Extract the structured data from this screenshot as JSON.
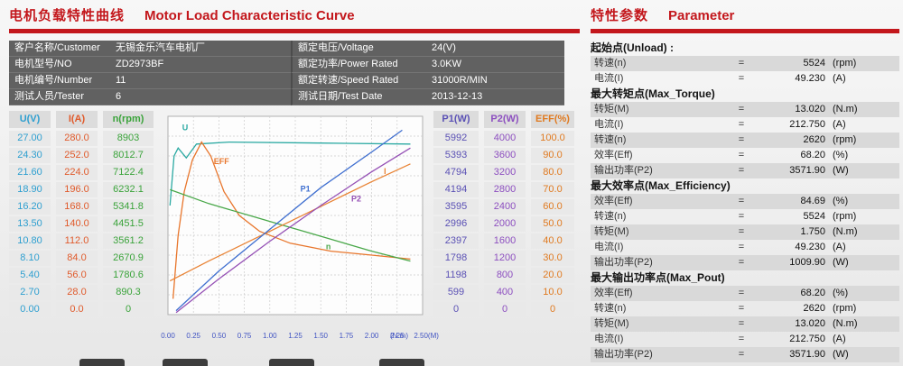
{
  "page": {
    "left_title_zh": "电机负载特性曲线",
    "left_title_en": "Motor Load Characteristic Curve",
    "right_title_zh": "特性参数",
    "right_title_en": "Parameter",
    "accent_color": "#c3171c"
  },
  "info": {
    "left_rows": [
      {
        "label": "客户名称/Customer",
        "value": "无锡金乐汽车电机厂"
      },
      {
        "label": "电机型号/NO",
        "value": "ZD2973BF"
      },
      {
        "label": "电机编号/Number",
        "value": "11"
      },
      {
        "label": "测试人员/Tester",
        "value": "6"
      }
    ],
    "right_rows": [
      {
        "label": "额定电压/Voltage",
        "value": "24(V)"
      },
      {
        "label": "额定功率/Power Rated",
        "value": "3.0KW"
      },
      {
        "label": "额定转速/Speed Rated",
        "value": "31000R/MIN"
      },
      {
        "label": "测试日期/Test Date",
        "value": "2013-12-13"
      }
    ]
  },
  "chart_data": {
    "type": "line",
    "title": "Motor Load Characteristic Curve",
    "x_axis": {
      "unit_label": "(N.m)",
      "range": [
        0,
        2.5
      ],
      "grid": true,
      "ticks": [
        "0.00",
        "0.25",
        "0.50",
        "0.75",
        "1.00",
        "1.25",
        "1.50",
        "1.75",
        "2.00",
        "2.25",
        "2.50(M)"
      ]
    },
    "axis_columns": [
      {
        "id": "U",
        "header": "U(V)",
        "color": "#2e9fd0",
        "ticks": [
          "27.00",
          "24.30",
          "21.60",
          "18.90",
          "16.20",
          "13.50",
          "10.80",
          "8.10",
          "5.40",
          "2.70",
          "0.00"
        ]
      },
      {
        "id": "I",
        "header": "I(A)",
        "color": "#e05a2b",
        "ticks": [
          "280.0",
          "252.0",
          "224.0",
          "196.0",
          "168.0",
          "140.0",
          "112.0",
          "84.0",
          "56.0",
          "28.0",
          "0.0"
        ]
      },
      {
        "id": "n",
        "header": "n(rpm)",
        "color": "#3aa33a",
        "ticks": [
          "8903",
          "8012.7",
          "7122.4",
          "6232.1",
          "5341.8",
          "4451.5",
          "3561.2",
          "2670.9",
          "1780.6",
          "890.3",
          "0"
        ]
      },
      {
        "id": "P1",
        "header": "P1(W)",
        "color": "#5b51b5",
        "ticks": [
          "5992",
          "5393",
          "4794",
          "4194",
          "3595",
          "2996",
          "2397",
          "1798",
          "1198",
          "599",
          "0"
        ]
      },
      {
        "id": "P2",
        "header": "P2(W)",
        "color": "#8d4fc0",
        "ticks": [
          "4000",
          "3600",
          "3200",
          "2800",
          "2400",
          "2000",
          "1600",
          "1200",
          "800",
          "400",
          "0"
        ]
      },
      {
        "id": "EFF",
        "header": "EFF(%)",
        "color": "#e07a20",
        "ticks": [
          "100.0",
          "90.0",
          "80.0",
          "70.0",
          "60.0",
          "50.0",
          "40.0",
          "30.0",
          "20.0",
          "10.0",
          "0"
        ]
      }
    ],
    "series": [
      {
        "name": "U",
        "color": "#2aa9a2",
        "points": [
          [
            0.02,
            0.55
          ],
          [
            0.06,
            0.8
          ],
          [
            0.1,
            0.84
          ],
          [
            0.18,
            0.79
          ],
          [
            0.28,
            0.86
          ],
          [
            0.6,
            0.87
          ],
          [
            1.5,
            0.865
          ],
          [
            2.38,
            0.86
          ]
        ],
        "label_at": [
          0.14,
          0.93
        ]
      },
      {
        "name": "EFF",
        "color": "#e8762c",
        "points": [
          [
            0.05,
            0.08
          ],
          [
            0.1,
            0.4
          ],
          [
            0.16,
            0.62
          ],
          [
            0.24,
            0.78
          ],
          [
            0.33,
            0.87
          ],
          [
            0.42,
            0.8
          ],
          [
            0.55,
            0.62
          ],
          [
            0.7,
            0.5
          ],
          [
            0.9,
            0.42
          ],
          [
            1.2,
            0.36
          ],
          [
            1.6,
            0.32
          ],
          [
            2.0,
            0.3
          ],
          [
            2.38,
            0.28
          ]
        ],
        "label_at": [
          0.45,
          0.76
        ]
      },
      {
        "name": "n",
        "color": "#4aa84a",
        "points": [
          [
            0.02,
            0.63
          ],
          [
            0.4,
            0.56
          ],
          [
            0.8,
            0.5
          ],
          [
            1.2,
            0.44
          ],
          [
            1.6,
            0.38
          ],
          [
            2.0,
            0.32
          ],
          [
            2.38,
            0.27
          ]
        ],
        "label_at": [
          1.55,
          0.33
        ]
      },
      {
        "name": "I",
        "color": "#e98436",
        "points": [
          [
            0.02,
            0.17
          ],
          [
            0.4,
            0.27
          ],
          [
            0.8,
            0.37
          ],
          [
            1.2,
            0.47
          ],
          [
            1.6,
            0.57
          ],
          [
            2.0,
            0.67
          ],
          [
            2.38,
            0.76
          ]
        ],
        "label_at": [
          2.12,
          0.71
        ]
      },
      {
        "name": "P1",
        "color": "#3f6fd0",
        "points": [
          [
            0.08,
            0.02
          ],
          [
            0.5,
            0.22
          ],
          [
            1.0,
            0.43
          ],
          [
            1.5,
            0.64
          ],
          [
            2.0,
            0.82
          ],
          [
            2.3,
            0.93
          ]
        ],
        "label_at": [
          1.3,
          0.62
        ]
      },
      {
        "name": "P2",
        "color": "#9550b5",
        "points": [
          [
            0.08,
            0.01
          ],
          [
            0.5,
            0.18
          ],
          [
            1.0,
            0.37
          ],
          [
            1.5,
            0.55
          ],
          [
            2.0,
            0.72
          ],
          [
            2.38,
            0.84
          ]
        ],
        "label_at": [
          1.8,
          0.57
        ]
      }
    ]
  },
  "parameters": {
    "sections": [
      {
        "title": "起始点(Unload) :",
        "rows": [
          {
            "label": "转速(n)",
            "eq": "=",
            "value": "5524",
            "unit": "(rpm)"
          },
          {
            "label": "电流(I)",
            "eq": "=",
            "value": "49.230",
            "unit": "(A)"
          }
        ]
      },
      {
        "title": "最大转矩点(Max_Torque)",
        "rows": [
          {
            "label": "转矩(M)",
            "eq": "=",
            "value": "13.020",
            "unit": "(N.m)"
          },
          {
            "label": "电流(I)",
            "eq": "=",
            "value": "212.750",
            "unit": "(A)"
          },
          {
            "label": "转速(n)",
            "eq": "=",
            "value": "2620",
            "unit": "(rpm)"
          },
          {
            "label": "效率(Eff)",
            "eq": "=",
            "value": "68.20",
            "unit": "(%)"
          },
          {
            "label": "输出功率(P2)",
            "eq": "=",
            "value": "3571.90",
            "unit": "(W)"
          }
        ]
      },
      {
        "title": "最大效率点(Max_Efficiency)",
        "rows": [
          {
            "label": "效率(Eff)",
            "eq": "=",
            "value": "84.69",
            "unit": "(%)"
          },
          {
            "label": "转速(n)",
            "eq": "=",
            "value": "5524",
            "unit": "(rpm)"
          },
          {
            "label": "转矩(M)",
            "eq": "=",
            "value": "1.750",
            "unit": "(N.m)"
          },
          {
            "label": "电流(I)",
            "eq": "=",
            "value": "49.230",
            "unit": "(A)"
          },
          {
            "label": "输出功率(P2)",
            "eq": "=",
            "value": "1009.90",
            "unit": "(W)"
          }
        ]
      },
      {
        "title": "最大输出功率点(Max_Pout)",
        "rows": [
          {
            "label": "效率(Eff)",
            "eq": "=",
            "value": "68.20",
            "unit": "(%)"
          },
          {
            "label": "转速(n)",
            "eq": "=",
            "value": "2620",
            "unit": "(rpm)"
          },
          {
            "label": "转矩(M)",
            "eq": "=",
            "value": "13.020",
            "unit": "(N.m)"
          },
          {
            "label": "电流(I)",
            "eq": "=",
            "value": "212.750",
            "unit": "(A)"
          },
          {
            "label": "输出功率(P2)",
            "eq": "=",
            "value": "3571.90",
            "unit": "(W)"
          }
        ]
      }
    ]
  }
}
